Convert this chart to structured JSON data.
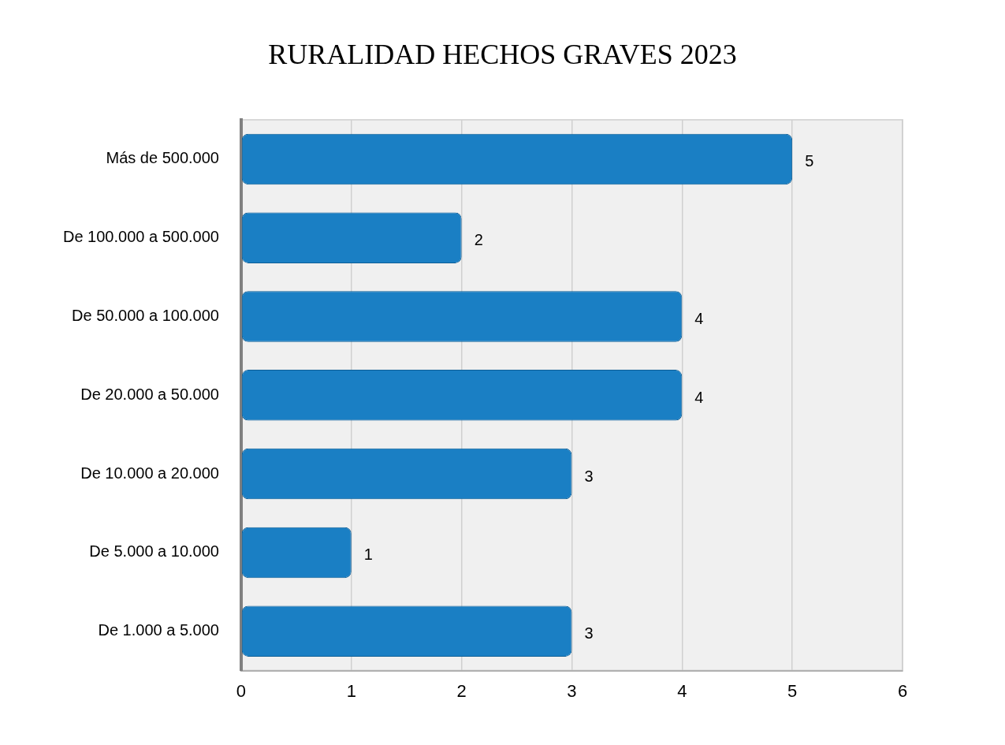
{
  "chart_data": {
    "type": "bar",
    "orientation": "horizontal",
    "title": "RURALIDAD HECHOS GRAVES 2023",
    "categories": [
      "Más de 500.000",
      "De 100.000 a 500.000",
      "De 50.000 a 100.000",
      "De 20.000 a 50.000",
      "De 10.000 a 20.000",
      "De 5.000 a 10.000",
      "De 1.000 a 5.000"
    ],
    "values": [
      5,
      2,
      4,
      4,
      3,
      1,
      3
    ],
    "color": "#1a7fc4",
    "xlim": [
      0,
      6
    ],
    "xticks": [
      0,
      1,
      2,
      3,
      4,
      5,
      6
    ],
    "grid": "x",
    "data_labels": true
  }
}
